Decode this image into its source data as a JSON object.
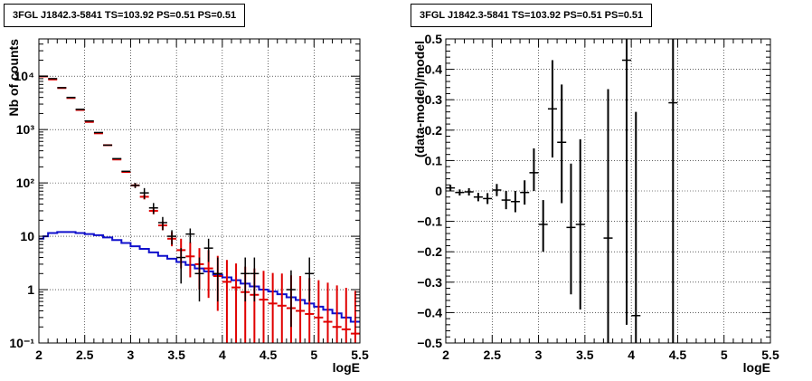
{
  "chart_data": [
    {
      "type": "histogram",
      "title": "3FGL J1842.3-5841 TS=103.92 PS=0.51 PS=0.51",
      "xlabel": "logE",
      "ylabel": "Nb of counts",
      "xlim": [
        2,
        5.5
      ],
      "ylim": [
        0.1,
        50000
      ],
      "yscale": "log",
      "grid": true,
      "xticks": [
        "2",
        "2.5",
        "3",
        "3.5",
        "4",
        "4.5",
        "5",
        "5.5"
      ],
      "yticks": [
        "10⁻¹",
        "1",
        "10",
        "10²",
        "10³",
        "10⁴"
      ],
      "colors": {
        "data": "#000000",
        "model": "#e00000",
        "background": "#1010cc"
      },
      "data": {
        "x": [
          2.05,
          2.15,
          2.25,
          2.35,
          2.45,
          2.55,
          2.65,
          2.75,
          2.85,
          2.95,
          3.05,
          3.15,
          3.25,
          3.35,
          3.45,
          3.55,
          3.65,
          3.75,
          3.85,
          3.95,
          4.05,
          4.15,
          4.25,
          4.35,
          4.45,
          4.55,
          4.65,
          4.75,
          4.85,
          4.95,
          5.05,
          5.15,
          5.25,
          5.35,
          5.45
        ],
        "y": [
          10000,
          9000,
          6100,
          4000,
          2400,
          1450,
          880,
          510,
          285,
          165,
          90,
          65,
          34,
          18,
          10,
          4,
          11,
          2,
          6,
          2,
          null,
          null,
          2,
          2,
          null,
          null,
          null,
          1,
          null,
          2,
          null,
          null,
          null,
          null,
          null
        ],
        "err_lo": [
          0,
          0,
          0,
          0,
          0,
          0,
          0,
          0,
          0,
          0,
          10,
          15,
          8,
          5,
          3,
          2.7,
          3.5,
          1.4,
          2.7,
          1.4,
          0,
          0,
          1.4,
          1.4,
          0,
          0,
          0,
          0.8,
          0,
          1.4,
          0,
          0,
          0,
          0,
          0
        ],
        "err_hi": [
          0,
          0,
          0,
          0,
          0,
          0,
          0,
          0,
          0,
          0,
          10,
          15,
          8,
          5,
          3,
          2,
          3,
          2,
          3,
          2,
          0,
          0,
          2,
          2,
          0,
          0,
          0,
          1.3,
          0,
          2,
          0,
          0,
          0,
          0,
          0
        ]
      },
      "model": {
        "y": [
          9900,
          8700,
          6000,
          3900,
          2330,
          1390,
          850,
          510,
          275,
          160,
          90,
          55,
          30,
          16,
          9,
          5.5,
          4.2,
          3,
          2.5,
          1.8,
          1.4,
          1.1,
          0.9,
          0.8,
          0.65,
          0.55,
          0.5,
          0.45,
          0.4,
          0.35,
          0.3,
          0.25,
          0.2,
          0.18,
          0.15
        ],
        "err_lo": [
          0,
          0,
          0,
          0,
          0,
          0,
          0,
          0,
          0,
          0,
          8,
          6,
          4,
          3,
          2.5,
          3,
          2.5,
          2,
          1.8,
          1.4,
          1.3,
          1.0,
          0.85,
          0.78,
          0.64,
          0.55,
          0.5,
          0.45,
          0.4,
          0.35,
          0.3,
          0.25,
          0.2,
          0.18,
          0.15
        ],
        "err_hi": [
          0,
          0,
          0,
          0,
          0,
          0,
          0,
          0,
          0,
          0,
          8,
          6,
          4,
          3,
          3,
          3.5,
          3.5,
          3,
          3,
          2.5,
          2.2,
          2,
          1.8,
          1.7,
          1.6,
          1.5,
          1.5,
          1.4,
          1.4,
          1.3,
          1.2,
          1.1,
          1.0,
          0.9,
          0.8
        ]
      },
      "background": {
        "edges": [
          2.0,
          2.05,
          2.1,
          2.2,
          2.3,
          2.4,
          2.5,
          2.6,
          2.7,
          2.8,
          2.9,
          3.0,
          3.1,
          3.2,
          3.3,
          3.4,
          3.5,
          3.6,
          3.7,
          3.8,
          3.9,
          4.0,
          4.1,
          4.2,
          4.3,
          4.4,
          4.5,
          4.6,
          4.7,
          4.8,
          4.9,
          5.0,
          5.1,
          5.2,
          5.3,
          5.4,
          5.5
        ],
        "y": [
          9,
          10,
          11.5,
          12,
          12,
          11.5,
          11,
          10.5,
          9.5,
          8.5,
          7.5,
          6.5,
          5.8,
          5.0,
          4.3,
          3.8,
          3.3,
          2.9,
          2.5,
          2.2,
          1.9,
          1.7,
          1.5,
          1.3,
          1.15,
          1.0,
          0.92,
          0.82,
          0.72,
          0.64,
          0.55,
          0.48,
          0.42,
          0.36,
          0.3,
          0.25
        ]
      }
    },
    {
      "type": "scatter",
      "title": "3FGL J1842.3-5841 TS=103.92 PS=0.51 PS=0.51",
      "xlabel": "logE",
      "ylabel": "(data-model)/model",
      "xlim": [
        2,
        5.5
      ],
      "ylim": [
        -0.5,
        0.5
      ],
      "grid": true,
      "xticks": [
        "2",
        "2.5",
        "3",
        "3.5",
        "4",
        "4.5",
        "5",
        "5.5"
      ],
      "yticks": [
        "−0.5",
        "−0.4",
        "−0.3",
        "−0.2",
        "−0.1",
        "0",
        "0.1",
        "0.2",
        "0.3",
        "0.4",
        "0.5"
      ],
      "x": [
        2.05,
        2.15,
        2.25,
        2.35,
        2.45,
        2.55,
        2.65,
        2.75,
        2.85,
        2.95,
        3.05,
        3.15,
        3.25,
        3.35,
        3.45,
        3.75,
        3.95,
        4.05,
        4.45
      ],
      "y": [
        0.01,
        -0.005,
        -0.003,
        -0.02,
        -0.025,
        0.003,
        -0.03,
        -0.035,
        -0.005,
        0.06,
        -0.11,
        0.27,
        0.16,
        -0.12,
        -0.11,
        -0.155,
        0.43,
        -0.41,
        0.29
      ],
      "err_lo": [
        0.01,
        0.01,
        0.012,
        0.014,
        0.018,
        0.02,
        0.03,
        0.035,
        0.04,
        0.06,
        0.09,
        0.16,
        0.2,
        0.22,
        0.28,
        0.4,
        0.87,
        0.2,
        0.9
      ],
      "err_hi": [
        0.01,
        0.01,
        0.012,
        0.014,
        0.018,
        0.02,
        0.03,
        0.035,
        0.04,
        0.08,
        0.08,
        0.16,
        0.19,
        0.21,
        0.28,
        0.49,
        0.6,
        0.67,
        0.9
      ]
    }
  ]
}
